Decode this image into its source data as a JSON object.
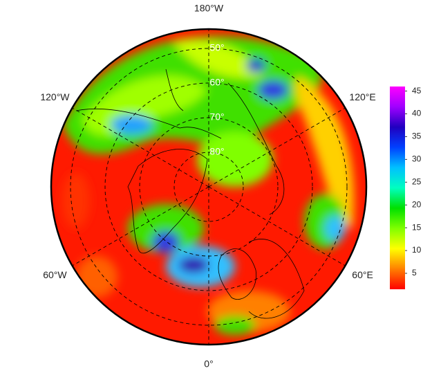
{
  "map": {
    "longitude_labels": [
      {
        "value": -180,
        "label": "180°W"
      },
      {
        "value": 120,
        "label": "120°E"
      },
      {
        "value": 60,
        "label": "60°E"
      },
      {
        "value": 0,
        "label": "0°"
      },
      {
        "value": -60,
        "label": "60°W"
      },
      {
        "value": -120,
        "label": "120°W"
      }
    ],
    "latitude_circles": [
      {
        "value": 50,
        "label": "50°"
      },
      {
        "value": 60,
        "label": "60°"
      },
      {
        "value": 70,
        "label": "70°"
      },
      {
        "value": 80,
        "label": "80°"
      }
    ],
    "colorbar": {
      "lim": [
        1.5,
        46
      ],
      "ticks": [
        5,
        10,
        15,
        20,
        25,
        30,
        35,
        40,
        45
      ],
      "colors": [
        "#ff0000",
        "#ff8000",
        "#ffff00",
        "#80ff00",
        "#00e000",
        "#00ffc0",
        "#00c0ff",
        "#0040ff",
        "#2000c0",
        "#a000ff",
        "#ff00ff"
      ]
    }
  }
}
